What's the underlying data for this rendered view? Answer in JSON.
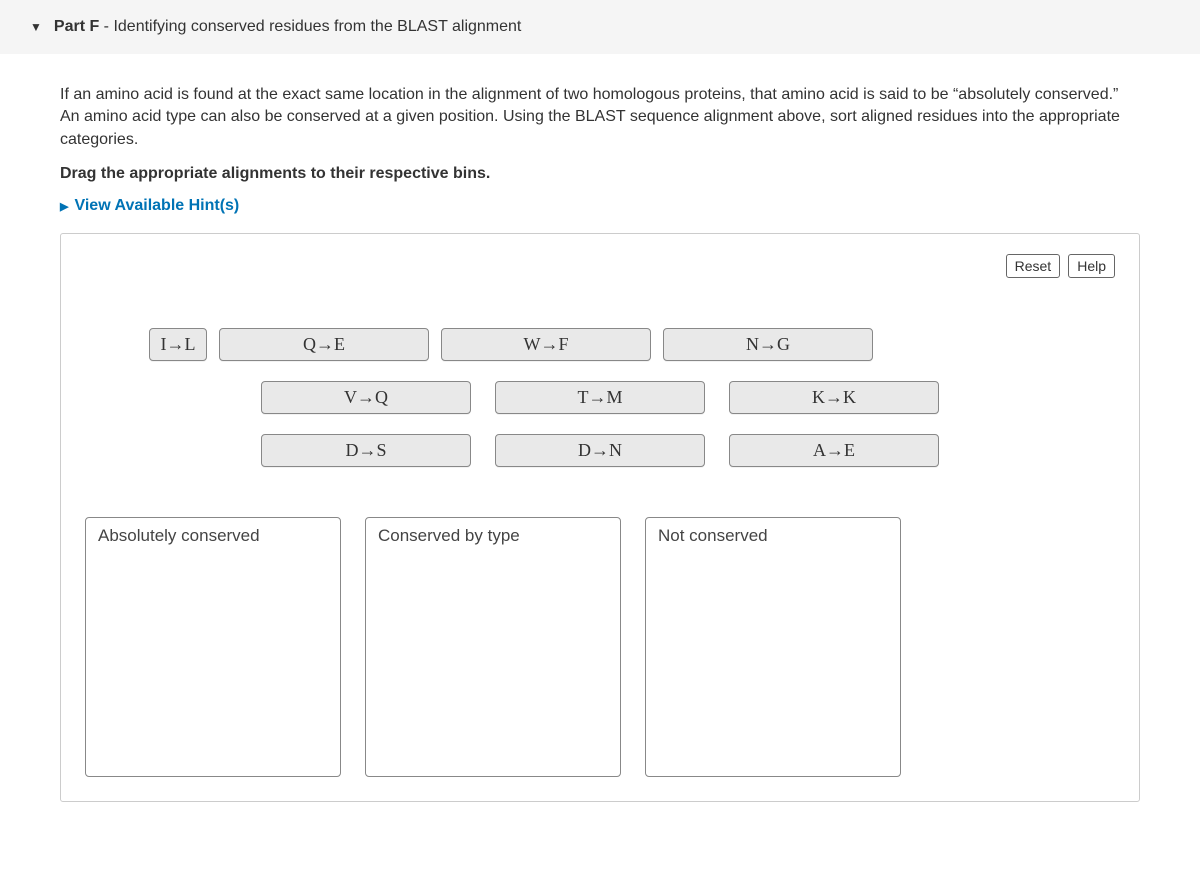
{
  "header": {
    "part_label": "Part F",
    "separator": " - ",
    "title": "Identifying conserved residues from the BLAST alignment"
  },
  "intro": "If an amino acid is found at the exact same location in the alignment of two homologous proteins, that amino acid is said to be “absolutely conserved.” An amino acid type can also be conserved at a given position. Using the BLAST sequence alignment above, sort aligned residues into the appropriate categories.",
  "instruction": "Drag the appropriate alignments to their respective bins.",
  "hint_label": "View Available Hint(s)",
  "buttons": {
    "reset": "Reset",
    "help": "Help"
  },
  "arrow": "→",
  "items": {
    "row1": [
      {
        "from": "I",
        "to": "L",
        "size": "small"
      },
      {
        "from": "Q",
        "to": "E",
        "size": "large"
      },
      {
        "from": "W",
        "to": "F",
        "size": "large"
      },
      {
        "from": "N",
        "to": "G",
        "size": "large"
      }
    ],
    "row2": [
      {
        "from": "V",
        "to": "Q",
        "size": "large"
      },
      {
        "from": "T",
        "to": "M",
        "size": "large"
      },
      {
        "from": "K",
        "to": "K",
        "size": "large"
      }
    ],
    "row3": [
      {
        "from": "D",
        "to": "S",
        "size": "large"
      },
      {
        "from": "D",
        "to": "N",
        "size": "large"
      },
      {
        "from": "A",
        "to": "E",
        "size": "large"
      }
    ]
  },
  "bins": [
    {
      "label": "Absolutely conserved"
    },
    {
      "label": "Conserved by type"
    },
    {
      "label": "Not conserved"
    }
  ],
  "colors": {
    "header_bg": "#f5f5f5",
    "link": "#0073b5",
    "item_bg": "#e9e9e9",
    "border": "#888888"
  }
}
